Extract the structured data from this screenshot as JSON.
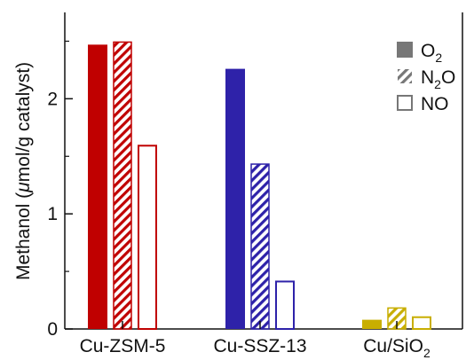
{
  "chart_data": {
    "type": "bar",
    "ylabel": "Methanol (μmol/g catalyst)",
    "ylabel_parts": {
      "pre": "Methanol (",
      "mu": "μ",
      "post": "mol/g catalyst)"
    },
    "ylim": [
      0,
      2.75
    ],
    "y_ticks": [
      "0",
      "1",
      "2"
    ],
    "y_tick_values": [
      0,
      1,
      2
    ],
    "grid": false,
    "legend_position": "top-right",
    "categories": [
      "Cu-ZSM-5",
      "Cu-SSZ-13",
      "Cu/SiO2"
    ],
    "category_labels": [
      {
        "main": "Cu-ZSM-5",
        "sub": "",
        "tail": ""
      },
      {
        "main": "Cu-SSZ-13",
        "sub": "",
        "tail": ""
      },
      {
        "main": "Cu/SiO",
        "sub": "2",
        "tail": ""
      }
    ],
    "category_colors": [
      "#c00000",
      "#2e22a9",
      "#c8ae00"
    ],
    "series": [
      {
        "name": "O2",
        "label": {
          "main": "O",
          "sub": "2",
          "tail": ""
        },
        "style": "solid",
        "values": [
          2.47,
          2.26,
          0.08
        ]
      },
      {
        "name": "N2O",
        "label": {
          "main": "N",
          "sub": "2",
          "tail": "O"
        },
        "style": "hatched",
        "values": [
          2.5,
          1.44,
          0.19
        ]
      },
      {
        "name": "NO",
        "label": {
          "main": "NO",
          "sub": "",
          "tail": ""
        },
        "style": "outline",
        "values": [
          1.6,
          0.42,
          0.11
        ]
      }
    ],
    "legend_color": "#777777"
  }
}
